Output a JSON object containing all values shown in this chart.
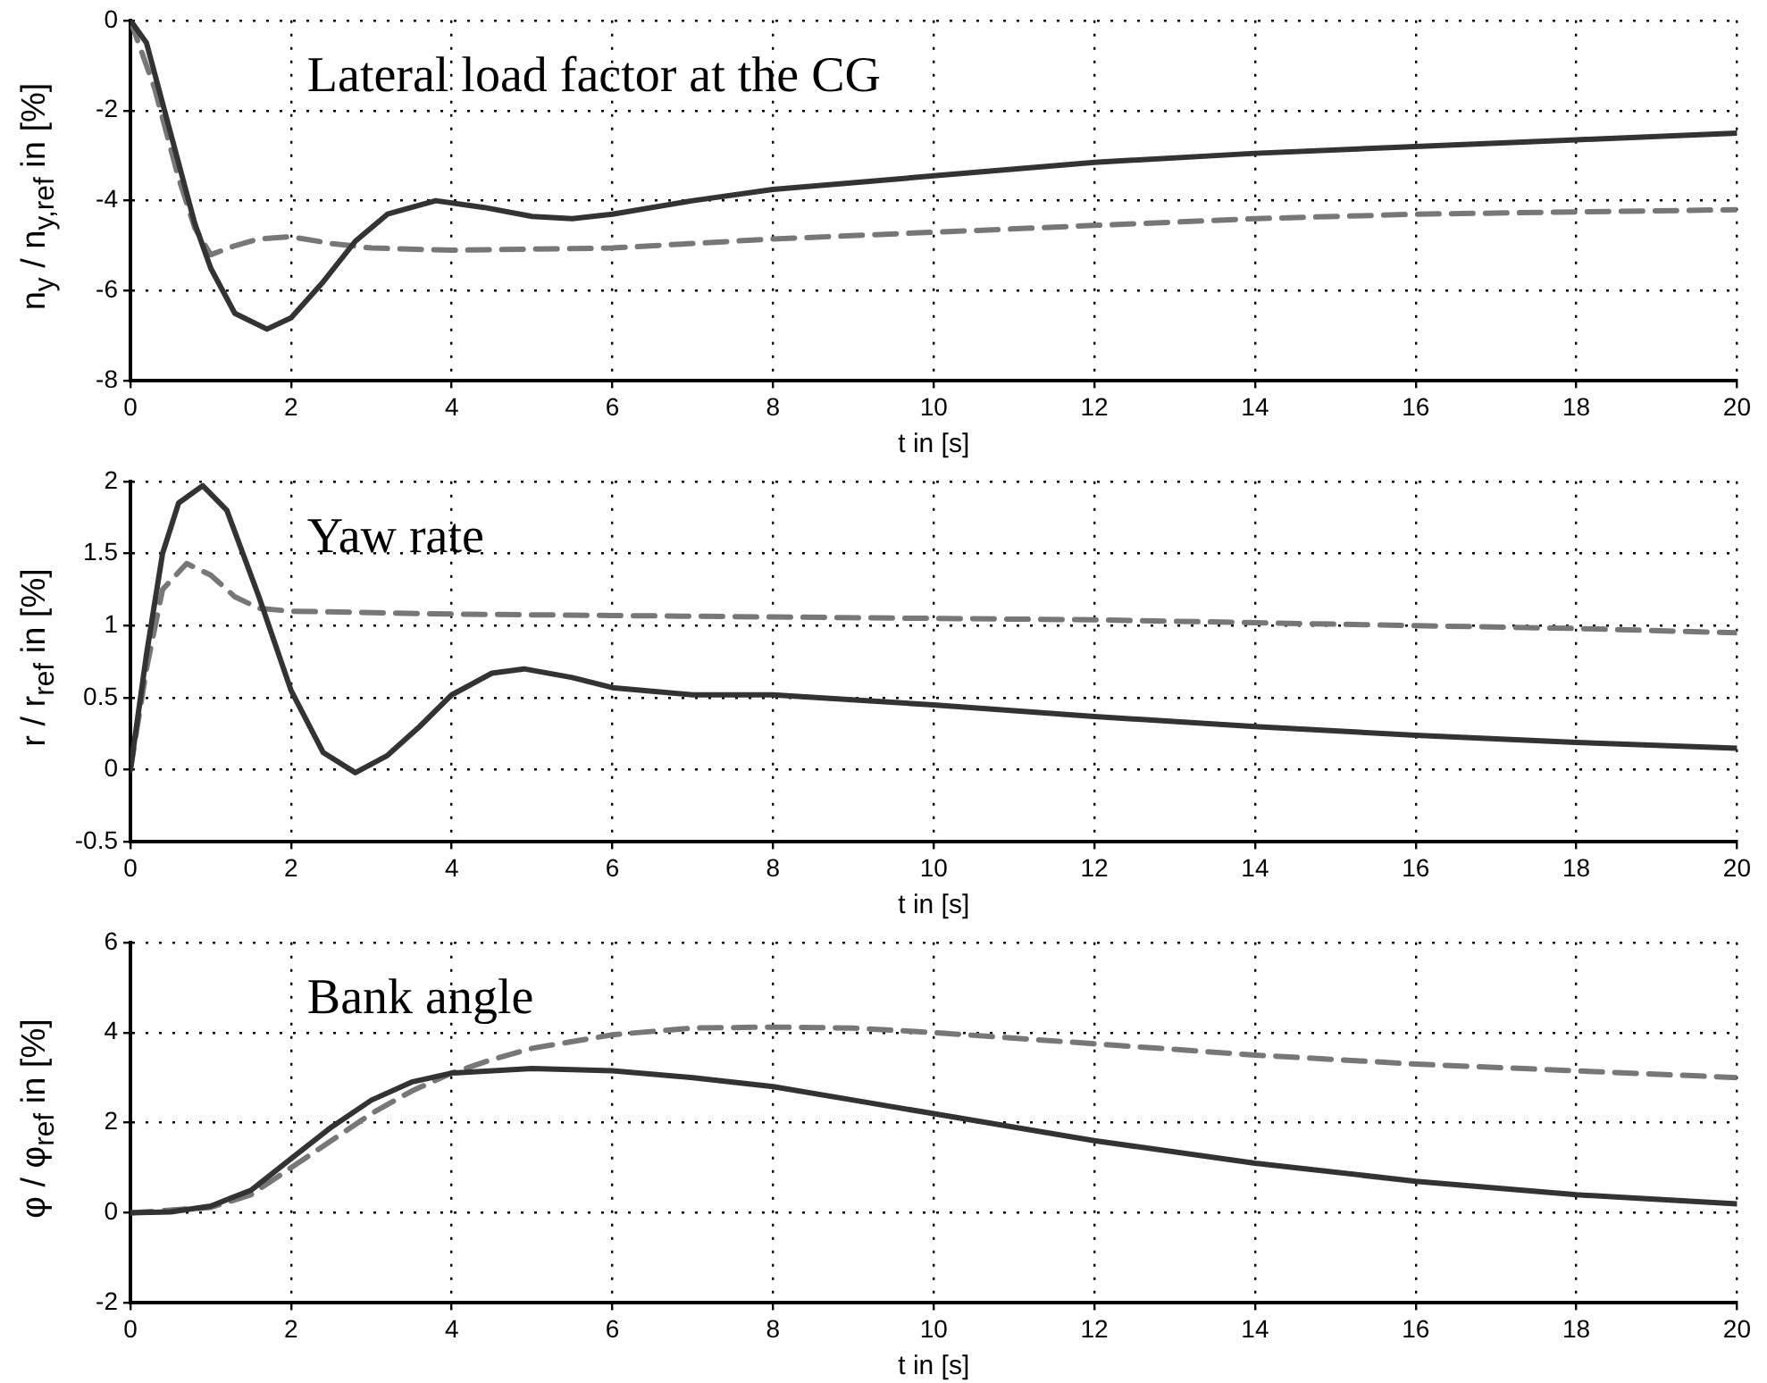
{
  "chart_data": [
    {
      "type": "line",
      "title": "Lateral load factor at the CG",
      "xlabel": "t in [s]",
      "ylabel": "n$_{y}$ / n$_{y,ref}$ in [%]",
      "xlim": [
        0,
        20
      ],
      "xticks": [
        0,
        2,
        4,
        6,
        8,
        10,
        12,
        14,
        16,
        18,
        20
      ],
      "ylim": [
        -8,
        0
      ],
      "yticks": [
        -8,
        -6,
        -4,
        -2,
        0
      ],
      "grid": true,
      "legend": false,
      "series": [
        {
          "color": "#333333",
          "line_style": "solid",
          "x": [
            0,
            0.2,
            0.5,
            0.8,
            1.0,
            1.3,
            1.7,
            2.0,
            2.4,
            2.8,
            3.2,
            3.8,
            4.4,
            5.0,
            5.5,
            6,
            7,
            8,
            10,
            12,
            14,
            16,
            18,
            20
          ],
          "values": [
            0,
            -0.5,
            -2.5,
            -4.5,
            -5.5,
            -6.5,
            -6.85,
            -6.6,
            -5.8,
            -4.9,
            -4.3,
            -4.0,
            -4.15,
            -4.35,
            -4.4,
            -4.3,
            -4.0,
            -3.75,
            -3.45,
            -3.15,
            -2.95,
            -2.8,
            -2.65,
            -2.5
          ]
        },
        {
          "color": "#777777",
          "line_style": "dashed",
          "x": [
            0,
            0.3,
            0.6,
            0.8,
            1.0,
            1.3,
            1.6,
            2,
            2.5,
            3,
            4,
            6,
            8,
            10,
            12,
            14,
            16,
            18,
            20
          ],
          "values": [
            0,
            -1.5,
            -3.5,
            -4.6,
            -5.2,
            -5.0,
            -4.85,
            -4.8,
            -4.95,
            -5.05,
            -5.1,
            -5.05,
            -4.85,
            -4.7,
            -4.55,
            -4.4,
            -4.3,
            -4.25,
            -4.2
          ]
        }
      ]
    },
    {
      "type": "line",
      "title": "Yaw rate",
      "xlabel": "t in [s]",
      "ylabel": "r / r$_{ref}$ in [%]",
      "xlim": [
        0,
        20
      ],
      "xticks": [
        0,
        2,
        4,
        6,
        8,
        10,
        12,
        14,
        16,
        18,
        20
      ],
      "ylim": [
        -0.5,
        2
      ],
      "yticks": [
        -0.5,
        0,
        0.5,
        1,
        1.5,
        2
      ],
      "grid": true,
      "legend": false,
      "series": [
        {
          "color": "#333333",
          "line_style": "solid",
          "x": [
            0,
            0.2,
            0.4,
            0.6,
            0.9,
            1.2,
            1.6,
            2.0,
            2.4,
            2.8,
            3.2,
            3.6,
            4.0,
            4.5,
            4.9,
            5.5,
            6,
            7,
            8,
            10,
            12,
            14,
            16,
            18,
            20
          ],
          "values": [
            0,
            0.8,
            1.5,
            1.85,
            1.97,
            1.8,
            1.2,
            0.55,
            0.12,
            -0.02,
            0.1,
            0.3,
            0.52,
            0.67,
            0.7,
            0.64,
            0.57,
            0.52,
            0.52,
            0.45,
            0.37,
            0.3,
            0.24,
            0.19,
            0.15
          ]
        },
        {
          "color": "#777777",
          "line_style": "dashed",
          "x": [
            0,
            0.2,
            0.4,
            0.7,
            1.0,
            1.3,
            1.6,
            2,
            4,
            6,
            8,
            10,
            12,
            14,
            16,
            18,
            20
          ],
          "values": [
            0,
            0.7,
            1.25,
            1.43,
            1.35,
            1.2,
            1.12,
            1.1,
            1.08,
            1.07,
            1.06,
            1.05,
            1.04,
            1.02,
            1.0,
            0.98,
            0.95
          ]
        }
      ]
    },
    {
      "type": "line",
      "title": "Bank angle",
      "xlabel": "t in [s]",
      "ylabel": "φ / φ$_{ref}$ in [%]",
      "xlim": [
        0,
        20
      ],
      "xticks": [
        0,
        2,
        4,
        6,
        8,
        10,
        12,
        14,
        16,
        18,
        20
      ],
      "ylim": [
        -2,
        6
      ],
      "yticks": [
        -2,
        0,
        2,
        4,
        6
      ],
      "grid": true,
      "legend": false,
      "series": [
        {
          "color": "#333333",
          "line_style": "solid",
          "x": [
            0,
            0.5,
            1,
            1.5,
            2,
            2.5,
            3,
            3.5,
            4,
            5,
            6,
            7,
            8,
            9,
            10,
            12,
            14,
            16,
            18,
            20
          ],
          "values": [
            0,
            0.02,
            0.15,
            0.5,
            1.2,
            1.9,
            2.5,
            2.9,
            3.1,
            3.2,
            3.15,
            3.0,
            2.8,
            2.5,
            2.2,
            1.6,
            1.1,
            0.7,
            0.4,
            0.2
          ]
        },
        {
          "color": "#777777",
          "line_style": "dashed",
          "x": [
            0,
            1,
            1.5,
            2,
            2.5,
            3,
            3.5,
            4,
            4.5,
            5,
            6,
            7,
            8,
            9,
            10,
            12,
            14,
            16,
            18,
            20
          ],
          "values": [
            0,
            0.12,
            0.4,
            1.0,
            1.6,
            2.2,
            2.7,
            3.1,
            3.4,
            3.65,
            3.95,
            4.1,
            4.12,
            4.1,
            4.0,
            3.75,
            3.5,
            3.3,
            3.15,
            3.0
          ]
        }
      ]
    }
  ]
}
